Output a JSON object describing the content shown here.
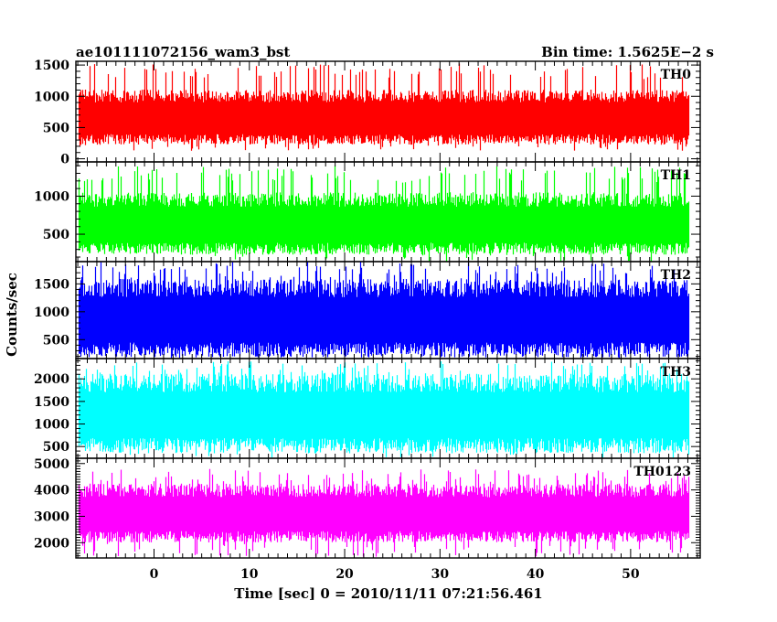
{
  "header": {
    "left": "ae101111072156_wam3_bst",
    "right": "Bin time: 1.5625E−2 s"
  },
  "chart_data": {
    "type": "line",
    "title": "ae101111072156_wam3_bst",
    "subtitle": "Bin time: 1.5625E−2 s",
    "xlabel": "Time [sec] 0 = 2010/11/11 07:21:56.461",
    "ylabel": "Counts/sec",
    "xlim": [
      -8.2,
      57.3
    ],
    "xticks": [
      0,
      10,
      20,
      30,
      40,
      50
    ],
    "x_start": -7.9,
    "x_end": 56.0,
    "bin_time": 0.015625,
    "grid": false,
    "legend": "none",
    "panels": [
      {
        "name": "TH0",
        "color": "#ff0000",
        "ylim": [
          -50,
          1560
        ],
        "yticks": [
          0,
          500,
          1000,
          1500
        ],
        "series_summary": {
          "min": 130,
          "max": 1530,
          "typical_low": 300,
          "typical_high": 1050
        }
      },
      {
        "name": "TH1",
        "color": "#00ff00",
        "ylim": [
          140,
          1450
        ],
        "yticks": [
          500,
          1000
        ],
        "series_summary": {
          "min": 140,
          "max": 1400,
          "typical_low": 300,
          "typical_high": 1000
        }
      },
      {
        "name": "TH2",
        "color": "#0000ff",
        "ylim": [
          160,
          1900
        ],
        "yticks": [
          500,
          1000,
          1500
        ],
        "series_summary": {
          "min": 160,
          "max": 1900,
          "typical_low": 300,
          "typical_high": 1500
        }
      },
      {
        "name": "TH3",
        "color": "#00ffff",
        "ylim": [
          240,
          2450
        ],
        "yticks": [
          500,
          1000,
          1500,
          2000
        ],
        "series_summary": {
          "min": 250,
          "max": 2400,
          "typical_low": 500,
          "typical_high": 2000
        }
      },
      {
        "name": "TH0123",
        "color": "#ff00ff",
        "ylim": [
          1420,
          5200
        ],
        "yticks": [
          2000,
          3000,
          4000,
          5000
        ],
        "series_summary": {
          "min": 1450,
          "max": 4800,
          "typical_low": 2200,
          "typical_high": 4100
        }
      }
    ]
  }
}
